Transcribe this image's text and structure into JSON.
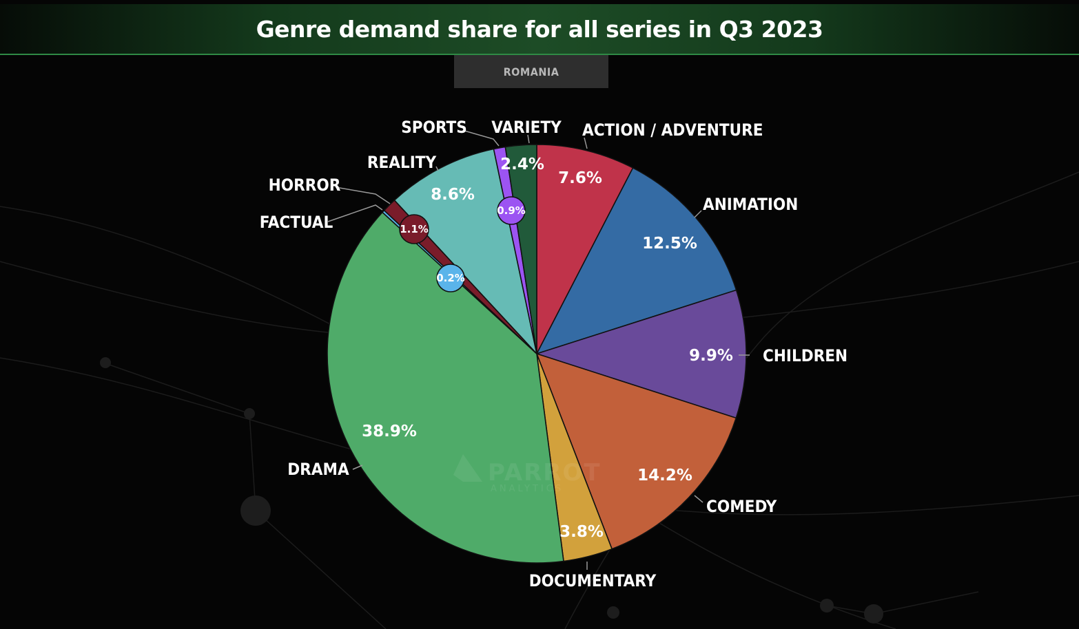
{
  "header": {
    "title": "Genre demand share for all series in Q3 2023"
  },
  "region": {
    "label": "ROMANIA"
  },
  "watermark": {
    "brand": "PARROT",
    "sub": "ANALYTICS"
  },
  "chart_data": {
    "type": "pie",
    "title": "Genre demand share for all series in Q3 2023",
    "subtitle": "ROMANIA",
    "unit": "%",
    "start_angle_deg": 0,
    "direction": "clockwise",
    "slices": [
      {
        "label": "ACTION / ADVENTURE",
        "value": 7.6,
        "display": "7.6%",
        "color": "#c0334a"
      },
      {
        "label": "ANIMATION",
        "value": 12.5,
        "display": "12.5%",
        "color": "#346ba4"
      },
      {
        "label": "CHILDREN",
        "value": 9.9,
        "display": "9.9%",
        "color": "#694a9a"
      },
      {
        "label": "COMEDY",
        "value": 14.2,
        "display": "14.2%",
        "color": "#c2603a"
      },
      {
        "label": "DOCUMENTARY",
        "value": 3.8,
        "display": "3.8%",
        "color": "#d2a13c"
      },
      {
        "label": "DRAMA",
        "value": 38.9,
        "display": "38.9%",
        "color": "#4fab69"
      },
      {
        "label": "FACTUAL",
        "value": 0.2,
        "display": "0.2%",
        "color": "#5ab4ea"
      },
      {
        "label": "HORROR",
        "value": 1.1,
        "display": "1.1%",
        "color": "#7a1c2a"
      },
      {
        "label": "REALITY",
        "value": 8.6,
        "display": "8.6%",
        "color": "#66bbb5"
      },
      {
        "label": "SPORTS",
        "value": 0.9,
        "display": "0.9%",
        "color": "#9c54f2"
      },
      {
        "label": "VARIETY",
        "value": 2.4,
        "display": "2.4%",
        "color": "#215a3a"
      }
    ]
  }
}
